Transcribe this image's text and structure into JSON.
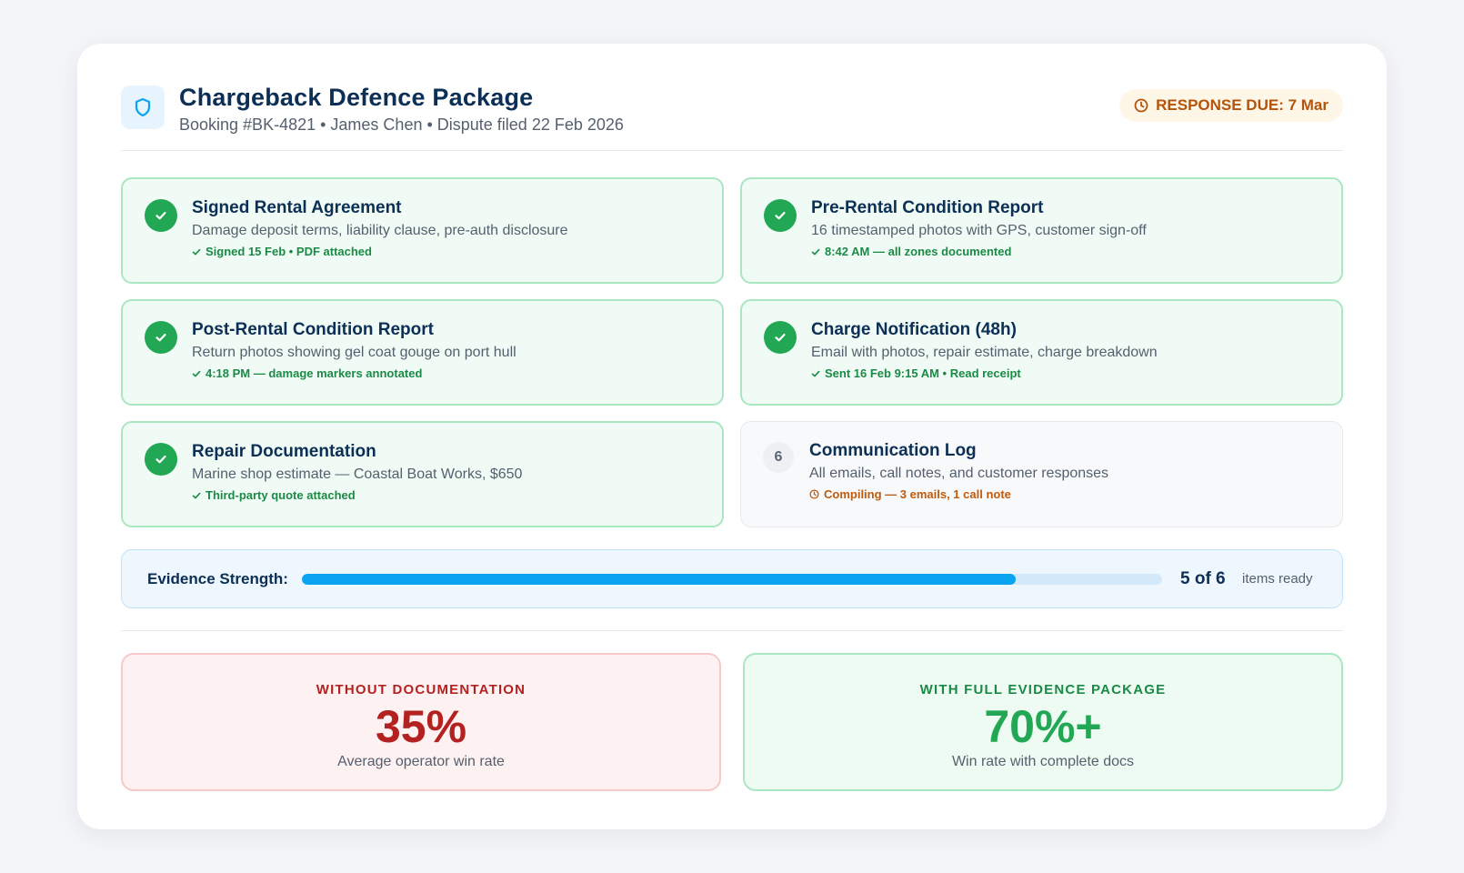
{
  "header": {
    "title": "Chargeback Defence Package",
    "subtitle": "Booking #BK-4821 • James Chen • Dispute filed 22 Feb 2026",
    "due_badge": "RESPONSE DUE: 7 Mar",
    "icon": "shield-icon"
  },
  "items": [
    {
      "title": "Signed Rental Agreement",
      "desc": "Damage deposit terms, liability clause, pre-auth disclosure",
      "status": "Signed 15 Feb • PDF attached",
      "state": "complete"
    },
    {
      "title": "Pre-Rental Condition Report",
      "desc": "16 timestamped photos with GPS, customer sign-off",
      "status": "8:42 AM — all zones documented",
      "state": "complete"
    },
    {
      "title": "Post-Rental Condition Report",
      "desc": "Return photos showing gel coat gouge on port hull",
      "status": "4:18 PM — damage markers annotated",
      "state": "complete"
    },
    {
      "title": "Charge Notification (48h)",
      "desc": "Email with photos, repair estimate, charge breakdown",
      "status": "Sent 16 Feb 9:15 AM • Read receipt",
      "state": "complete"
    },
    {
      "title": "Repair Documentation",
      "desc": "Marine shop estimate — Coastal Boat Works, $650",
      "status": "Third-party quote attached",
      "state": "complete"
    },
    {
      "number": "6",
      "title": "Communication Log",
      "desc": "All emails, call notes, and customer responses",
      "status": "Compiling — 3 emails, 1 call note",
      "state": "pending"
    }
  ],
  "strength": {
    "label": "Evidence Strength:",
    "count": "5 of 6",
    "suffix": "items ready",
    "progress_fraction": 0.83
  },
  "stats": {
    "without": {
      "label": "WITHOUT DOCUMENTATION",
      "value": "35%",
      "caption": "Average operator win rate"
    },
    "with": {
      "label": "WITH FULL EVIDENCE PACKAGE",
      "value": "70%+",
      "caption": "Win rate with complete docs"
    }
  },
  "colors": {
    "primary_text": "#0c2f55",
    "success": "#22a854",
    "danger": "#b32221",
    "warning": "#b4540a",
    "accent": "#0aa3f0"
  }
}
